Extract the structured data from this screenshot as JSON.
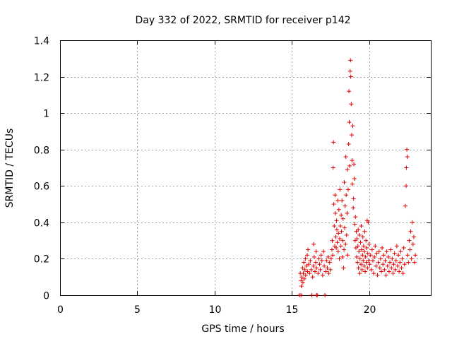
{
  "chart_data": {
    "type": "scatter",
    "title": "Day 332 of 2022, SRMTID for receiver p142",
    "xlabel": "GPS time / hours",
    "ylabel": "SRMTID / TECUs",
    "xlim": [
      0,
      24
    ],
    "ylim": [
      0,
      1.4
    ],
    "xticks": [
      0,
      5,
      10,
      15,
      20
    ],
    "yticks": [
      0,
      0.2,
      0.4,
      0.6,
      0.8,
      1.0,
      1.2,
      1.4
    ],
    "xtick_labels": [
      "0",
      "5",
      "10",
      "15",
      "20"
    ],
    "ytick_labels": [
      "0",
      "0.2",
      "0.4",
      "0.6",
      "0.8",
      "1",
      "1.2",
      "1.4"
    ],
    "grid": true,
    "marker": "+",
    "color": "#e00000",
    "series": [
      {
        "name": "p142",
        "points": [
          [
            15.5,
            0.0
          ],
          [
            15.55,
            0.12
          ],
          [
            15.6,
            0.08
          ],
          [
            15.62,
            0.05
          ],
          [
            15.65,
            0.1
          ],
          [
            15.7,
            0.15
          ],
          [
            15.72,
            0.07
          ],
          [
            15.75,
            0.12
          ],
          [
            15.78,
            0.18
          ],
          [
            15.8,
            0.09
          ],
          [
            15.85,
            0.14
          ],
          [
            15.88,
            0.2
          ],
          [
            15.9,
            0.11
          ],
          [
            15.95,
            0.16
          ],
          [
            16.0,
            0.22
          ],
          [
            16.02,
            0.13
          ],
          [
            16.05,
            0.25
          ],
          [
            16.1,
            0.17
          ],
          [
            16.15,
            0.12
          ],
          [
            16.2,
            0.19
          ],
          [
            16.25,
            0.14
          ],
          [
            16.3,
            0.0
          ],
          [
            16.35,
            0.1
          ],
          [
            16.4,
            0.16
          ],
          [
            16.42,
            0.28
          ],
          [
            16.45,
            0.21
          ],
          [
            16.5,
            0.13
          ],
          [
            16.55,
            0.18
          ],
          [
            16.58,
            0.24
          ],
          [
            16.6,
            0.15
          ],
          [
            16.65,
            0.0
          ],
          [
            16.7,
            0.12
          ],
          [
            16.75,
            0.2
          ],
          [
            16.8,
            0.17
          ],
          [
            16.85,
            0.14
          ],
          [
            16.9,
            0.22
          ],
          [
            16.95,
            0.19
          ],
          [
            17.0,
            0.11
          ],
          [
            17.05,
            0.24
          ],
          [
            17.1,
            0.16
          ],
          [
            17.15,
            0.0
          ],
          [
            17.2,
            0.13
          ],
          [
            17.25,
            0.19
          ],
          [
            17.3,
            0.15
          ],
          [
            17.35,
            0.21
          ],
          [
            17.4,
            0.12
          ],
          [
            17.45,
            0.18
          ],
          [
            17.5,
            0.14
          ],
          [
            17.55,
            0.2
          ],
          [
            17.6,
            0.25
          ],
          [
            17.62,
            0.3
          ],
          [
            17.65,
            0.22
          ],
          [
            17.68,
            0.7
          ],
          [
            17.7,
            0.84
          ],
          [
            17.72,
            0.5
          ],
          [
            17.75,
            0.38
          ],
          [
            17.78,
            0.27
          ],
          [
            17.8,
            0.55
          ],
          [
            17.82,
            0.45
          ],
          [
            17.85,
            0.32
          ],
          [
            17.88,
            0.26
          ],
          [
            17.9,
            0.41
          ],
          [
            17.92,
            0.36
          ],
          [
            17.95,
            0.29
          ],
          [
            17.98,
            0.52
          ],
          [
            18.0,
            0.24
          ],
          [
            18.02,
            0.34
          ],
          [
            18.05,
            0.47
          ],
          [
            18.08,
            0.2
          ],
          [
            18.1,
            0.31
          ],
          [
            18.12,
            0.58
          ],
          [
            18.15,
            0.38
          ],
          [
            18.18,
            0.27
          ],
          [
            18.2,
            0.44
          ],
          [
            18.22,
            0.35
          ],
          [
            18.25,
            0.52
          ],
          [
            18.28,
            0.21
          ],
          [
            18.3,
            0.3
          ],
          [
            18.32,
            0.42
          ],
          [
            18.35,
            0.15
          ],
          [
            18.38,
            0.25
          ],
          [
            18.4,
            0.62
          ],
          [
            18.42,
            0.37
          ],
          [
            18.45,
            0.49
          ],
          [
            18.48,
            0.28
          ],
          [
            18.5,
            0.76
          ],
          [
            18.52,
            0.55
          ],
          [
            18.55,
            0.33
          ],
          [
            18.58,
            0.45
          ],
          [
            18.6,
            0.69
          ],
          [
            18.62,
            0.22
          ],
          [
            18.65,
            0.58
          ],
          [
            18.68,
            0.83
          ],
          [
            18.7,
            1.12
          ],
          [
            18.72,
            0.95
          ],
          [
            18.75,
            0.71
          ],
          [
            18.78,
            1.23
          ],
          [
            18.8,
            1.29
          ],
          [
            18.82,
            1.2
          ],
          [
            18.85,
            1.05
          ],
          [
            18.88,
            0.88
          ],
          [
            18.9,
            0.74
          ],
          [
            18.92,
            0.61
          ],
          [
            18.95,
            0.93
          ],
          [
            18.98,
            0.48
          ],
          [
            19.0,
            0.53
          ],
          [
            19.02,
            0.72
          ],
          [
            19.05,
            0.64
          ],
          [
            19.08,
            0.39
          ],
          [
            19.1,
            0.3
          ],
          [
            19.12,
            0.43
          ],
          [
            19.15,
            0.26
          ],
          [
            19.18,
            0.35
          ],
          [
            19.2,
            0.21
          ],
          [
            19.22,
            0.31
          ],
          [
            19.25,
            0.18
          ],
          [
            19.28,
            0.27
          ],
          [
            19.3,
            0.36
          ],
          [
            19.32,
            0.15
          ],
          [
            19.35,
            0.24
          ],
          [
            19.38,
            0.33
          ],
          [
            19.4,
            0.12
          ],
          [
            19.42,
            0.2
          ],
          [
            19.45,
            0.29
          ],
          [
            19.48,
            0.17
          ],
          [
            19.5,
            0.38
          ],
          [
            19.52,
            0.25
          ],
          [
            19.55,
            0.14
          ],
          [
            19.58,
            0.22
          ],
          [
            19.6,
            0.32
          ],
          [
            19.62,
            0.19
          ],
          [
            19.65,
            0.27
          ],
          [
            19.68,
            0.16
          ],
          [
            19.7,
            0.24
          ],
          [
            19.72,
            0.35
          ],
          [
            19.75,
            0.13
          ],
          [
            19.78,
            0.21
          ],
          [
            19.8,
            0.3
          ],
          [
            19.82,
            0.18
          ],
          [
            19.85,
            0.26
          ],
          [
            19.88,
            0.41
          ],
          [
            19.9,
            0.15
          ],
          [
            19.92,
            0.23
          ],
          [
            19.95,
            0.4
          ],
          [
            19.98,
            0.19
          ],
          [
            20.0,
            0.28
          ],
          [
            20.05,
            0.17
          ],
          [
            20.1,
            0.22
          ],
          [
            20.15,
            0.14
          ],
          [
            20.2,
            0.25
          ],
          [
            20.25,
            0.19
          ],
          [
            20.3,
            0.12
          ],
          [
            20.35,
            0.21
          ],
          [
            20.4,
            0.27
          ],
          [
            20.45,
            0.16
          ],
          [
            20.5,
            0.23
          ],
          [
            20.55,
            0.11
          ],
          [
            20.6,
            0.18
          ],
          [
            20.65,
            0.24
          ],
          [
            20.7,
            0.15
          ],
          [
            20.75,
            0.2
          ],
          [
            20.8,
            0.13
          ],
          [
            20.85,
            0.26
          ],
          [
            20.9,
            0.17
          ],
          [
            20.95,
            0.22
          ],
          [
            21.0,
            0.14
          ],
          [
            21.05,
            0.19
          ],
          [
            21.1,
            0.11
          ],
          [
            21.15,
            0.24
          ],
          [
            21.2,
            0.16
          ],
          [
            21.25,
            0.21
          ],
          [
            21.3,
            0.13
          ],
          [
            21.35,
            0.18
          ],
          [
            21.4,
            0.25
          ],
          [
            21.45,
            0.15
          ],
          [
            21.5,
            0.2
          ],
          [
            21.55,
            0.12
          ],
          [
            21.6,
            0.17
          ],
          [
            21.65,
            0.23
          ],
          [
            21.7,
            0.14
          ],
          [
            21.75,
            0.19
          ],
          [
            21.8,
            0.27
          ],
          [
            21.85,
            0.16
          ],
          [
            21.9,
            0.22
          ],
          [
            21.95,
            0.13
          ],
          [
            22.0,
            0.18
          ],
          [
            22.05,
            0.24
          ],
          [
            22.1,
            0.15
          ],
          [
            22.15,
            0.2
          ],
          [
            22.2,
            0.12
          ],
          [
            22.25,
            0.26
          ],
          [
            22.3,
            0.17
          ],
          [
            22.35,
            0.49
          ],
          [
            22.4,
            0.6
          ],
          [
            22.42,
            0.7
          ],
          [
            22.45,
            0.8
          ],
          [
            22.48,
            0.76
          ],
          [
            22.5,
            0.22
          ],
          [
            22.55,
            0.18
          ],
          [
            22.6,
            0.3
          ],
          [
            22.65,
            0.25
          ],
          [
            22.7,
            0.35
          ],
          [
            22.75,
            0.2
          ],
          [
            22.8,
            0.4
          ],
          [
            22.85,
            0.28
          ],
          [
            22.9,
            0.32
          ],
          [
            22.95,
            0.18
          ],
          [
            23.0,
            0.22
          ],
          [
            15.6,
            0.0
          ],
          [
            16.6,
            0.0
          ]
        ]
      }
    ]
  }
}
